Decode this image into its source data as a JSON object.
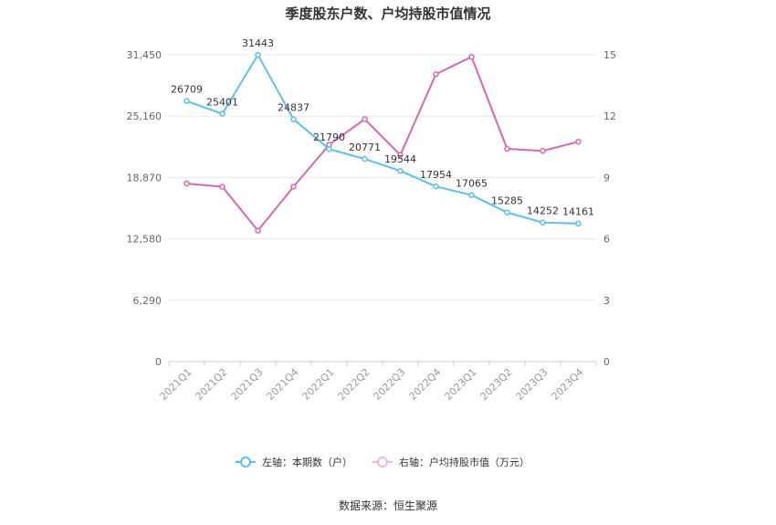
{
  "chart_data": {
    "type": "line",
    "title": "季度股东户数、户均持股市值情况",
    "categories": [
      "2021Q1",
      "2021Q2",
      "2021Q3",
      "2021Q4",
      "2022Q1",
      "2022Q2",
      "2022Q3",
      "2022Q4",
      "2023Q1",
      "2023Q2",
      "2023Q3",
      "2023Q4"
    ],
    "left_axis": {
      "ticks": [
        "0",
        "6,290",
        "12,580",
        "18,870",
        "25,160",
        "31,450"
      ],
      "ylim": [
        0,
        31450
      ]
    },
    "right_axis": {
      "ticks": [
        "0",
        "3",
        "6",
        "9",
        "12",
        "15"
      ],
      "ylim": [
        0,
        15
      ]
    },
    "series": [
      {
        "name": "左轴：本期数（户）",
        "axis": "left",
        "color": "#5bc0eb",
        "values": [
          26709,
          25401,
          31443,
          24837,
          21790,
          20771,
          19544,
          17954,
          17065,
          15285,
          14252,
          14161
        ],
        "labels": [
          "26709",
          "25401",
          "31443",
          "24837",
          "21790",
          "20771",
          "19544",
          "17954",
          "17065",
          "15285",
          "14252",
          "14161"
        ]
      },
      {
        "name": "右轴：户均持股市值（万元）",
        "axis": "right",
        "color": "#d568b0",
        "values": [
          8.7,
          8.55,
          6.4,
          8.55,
          10.6,
          11.85,
          10.1,
          14.05,
          14.9,
          10.4,
          10.3,
          10.75
        ]
      }
    ],
    "grid": true,
    "legend_position": "bottom"
  },
  "footer": {
    "source": "数据来源：恒生聚源"
  }
}
